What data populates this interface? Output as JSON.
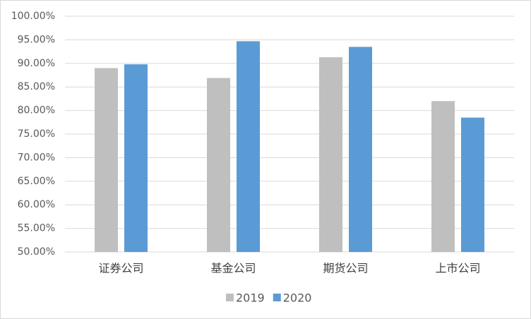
{
  "chart_data": {
    "type": "bar",
    "categories": [
      "证券公司",
      "基金公司",
      "期货公司",
      "上市公司"
    ],
    "series": [
      {
        "name": "2019",
        "color": "#bfbfbf",
        "values": [
          89.0,
          86.9,
          91.3,
          82.0
        ]
      },
      {
        "name": "2020",
        "color": "#5b9bd5",
        "values": [
          89.8,
          94.7,
          93.5,
          78.5
        ]
      }
    ],
    "ylim": [
      50,
      100
    ],
    "yticks": [
      {
        "value": 50,
        "label": "50.00%"
      },
      {
        "value": 55,
        "label": "55.00%"
      },
      {
        "value": 60,
        "label": "60.00%"
      },
      {
        "value": 65,
        "label": "65.00%"
      },
      {
        "value": 70,
        "label": "70.00%"
      },
      {
        "value": 75,
        "label": "75.00%"
      },
      {
        "value": 80,
        "label": "80.00%"
      },
      {
        "value": 85,
        "label": "85.00%"
      },
      {
        "value": 90,
        "label": "90.00%"
      },
      {
        "value": 95,
        "label": "95.00%"
      },
      {
        "value": 100,
        "label": "100.00%"
      }
    ],
    "grid": true,
    "legend": "bottom"
  }
}
